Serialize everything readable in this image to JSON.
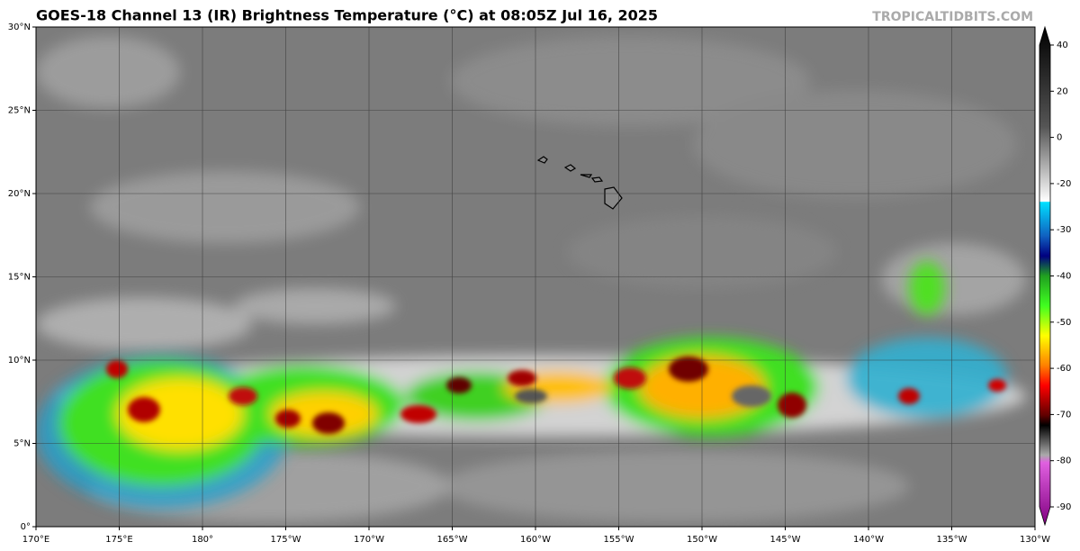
{
  "header": {
    "title": "GOES-18 Channel 13 (IR) Brightness Temperature (°C) at 08:05Z Jul 16, 2025",
    "credit": "TROPICALTIDBITS.COM"
  },
  "latitude_labels": [
    "0°",
    "5°N",
    "10°N",
    "15°N",
    "20°N",
    "25°N",
    "30°N"
  ],
  "longitude_labels": [
    "170°E",
    "175°E",
    "180°",
    "175°W",
    "170°W",
    "165°W",
    "160°W",
    "155°W",
    "150°W",
    "145°W",
    "140°W",
    "135°W",
    "130°W"
  ],
  "colorbar": {
    "ticks": [
      40,
      20,
      0,
      -20,
      -30,
      -40,
      -50,
      -60,
      -70,
      -80,
      -90
    ]
  }
}
